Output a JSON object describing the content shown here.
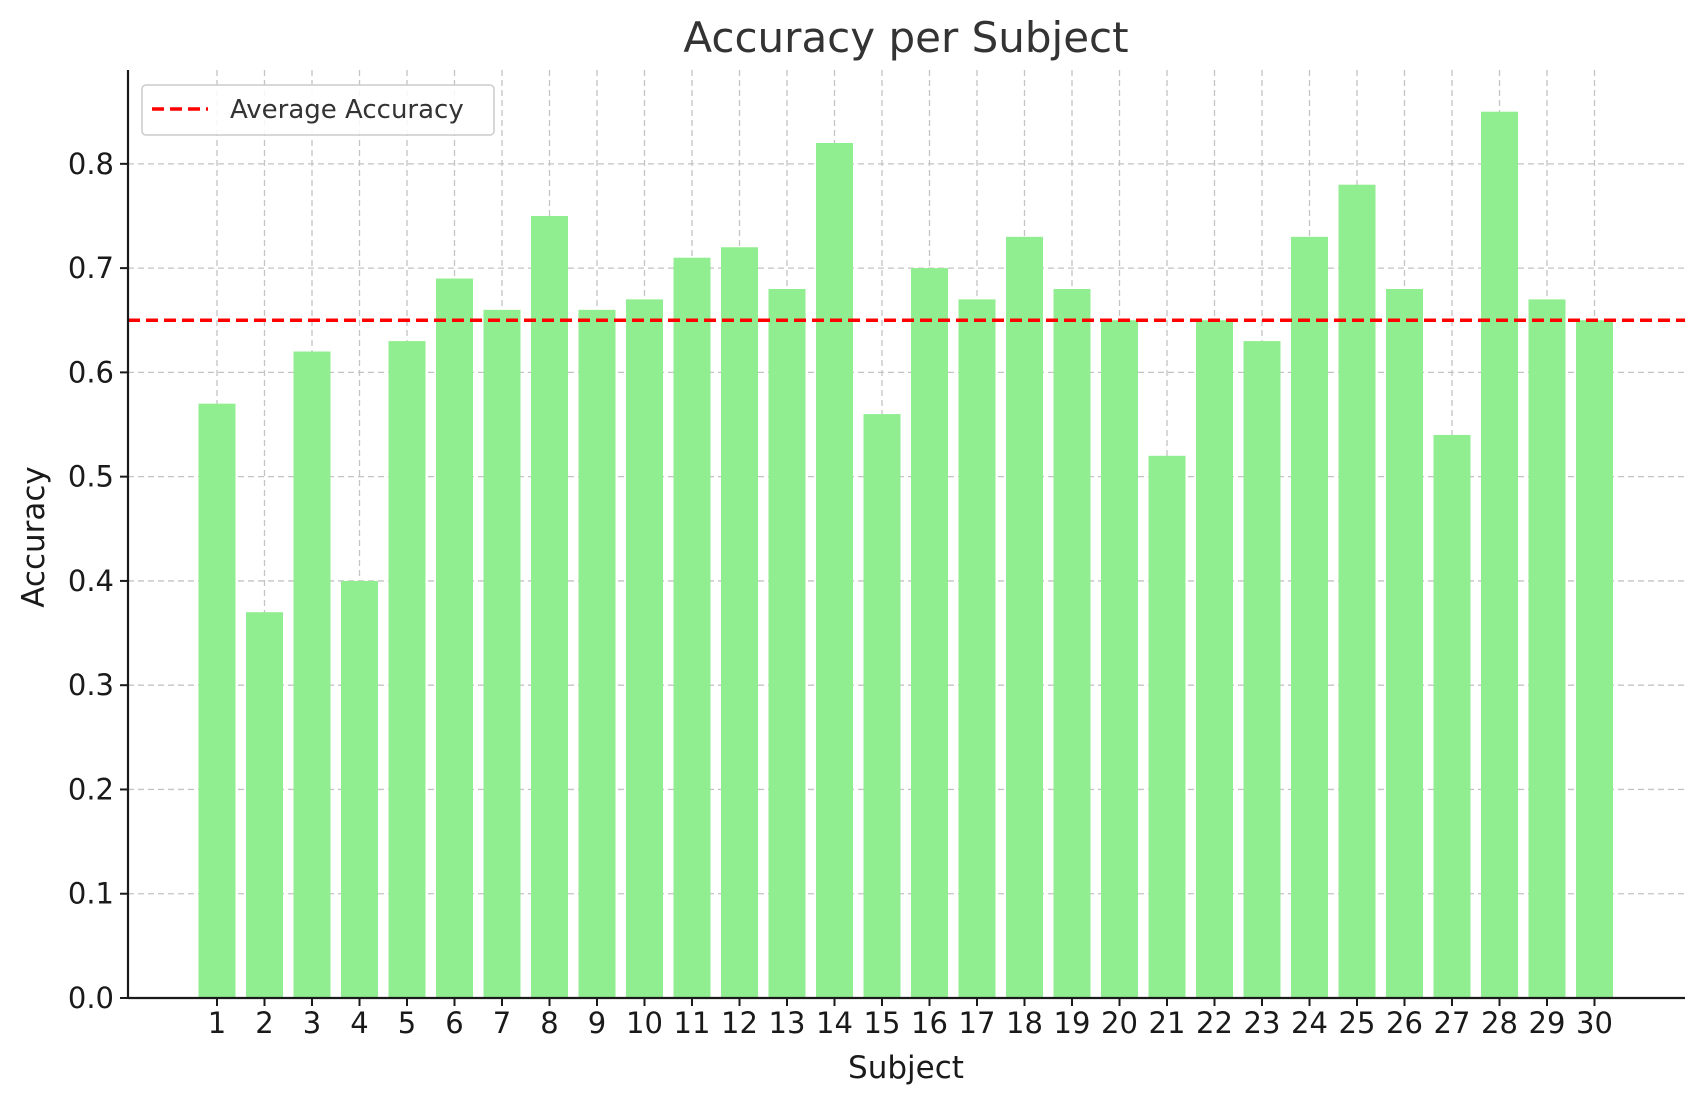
{
  "chart_data": {
    "type": "bar",
    "title": "Accuracy per Subject",
    "xlabel": "Subject",
    "ylabel": "Accuracy",
    "categories": [
      "1",
      "2",
      "3",
      "4",
      "5",
      "6",
      "7",
      "8",
      "9",
      "10",
      "11",
      "12",
      "13",
      "14",
      "15",
      "16",
      "17",
      "18",
      "19",
      "20",
      "21",
      "22",
      "23",
      "24",
      "25",
      "26",
      "27",
      "28",
      "29",
      "30"
    ],
    "values": [
      0.57,
      0.37,
      0.62,
      0.4,
      0.63,
      0.69,
      0.66,
      0.75,
      0.66,
      0.67,
      0.71,
      0.72,
      0.68,
      0.82,
      0.56,
      0.7,
      0.67,
      0.73,
      0.68,
      0.65,
      0.52,
      0.65,
      0.63,
      0.73,
      0.78,
      0.68,
      0.54,
      0.85,
      0.67,
      0.65
    ],
    "yticks": [
      "0.0",
      "0.1",
      "0.2",
      "0.3",
      "0.4",
      "0.5",
      "0.6",
      "0.7",
      "0.8"
    ],
    "ylim": [
      0,
      0.89
    ],
    "grid": true,
    "bar_color": "#90ee90",
    "average_line": {
      "label": "Average Accuracy",
      "value": 0.65,
      "color": "#ff0000",
      "style": "dashed"
    },
    "legend_position": "top-left"
  }
}
